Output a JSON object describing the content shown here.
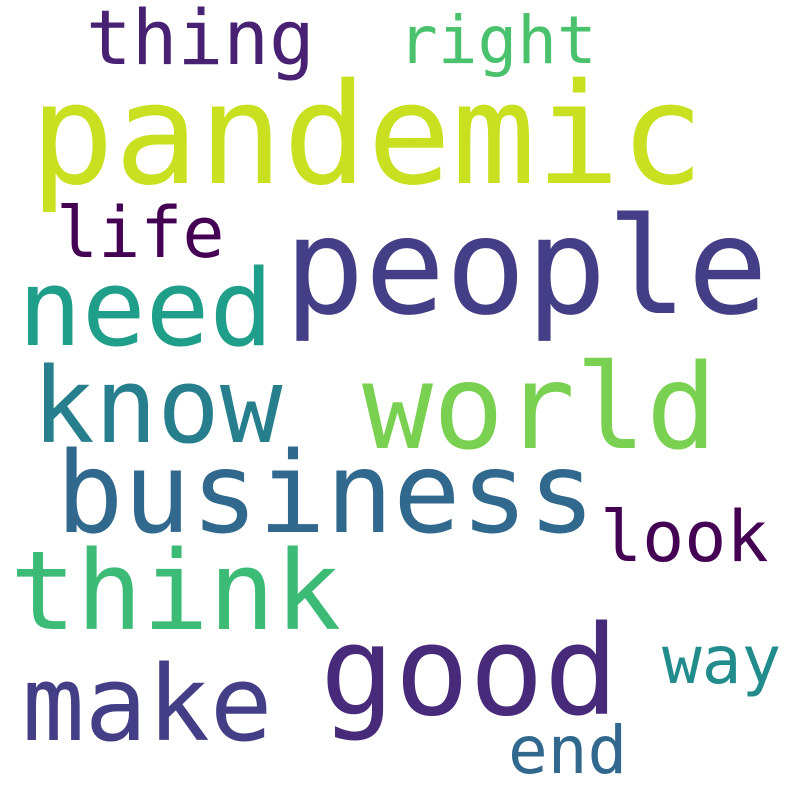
{
  "words": [
    {
      "text": "pandemic",
      "color": "#c8e020"
    },
    {
      "text": "people",
      "color": "#433e85"
    },
    {
      "text": "world",
      "color": "#7ad151"
    },
    {
      "text": "business",
      "color": "#31688e"
    },
    {
      "text": "think",
      "color": "#3bbb75"
    },
    {
      "text": "good",
      "color": "#472a7a"
    },
    {
      "text": "make",
      "color": "#433e85"
    },
    {
      "text": "need",
      "color": "#1f9e89"
    },
    {
      "text": "know",
      "color": "#277f8e"
    },
    {
      "text": "thing",
      "color": "#482173"
    },
    {
      "text": "right",
      "color": "#4ac16d"
    },
    {
      "text": "life",
      "color": "#440154"
    },
    {
      "text": "look",
      "color": "#440154"
    },
    {
      "text": "way",
      "color": "#228c8d"
    },
    {
      "text": "end",
      "color": "#31688e"
    }
  ]
}
